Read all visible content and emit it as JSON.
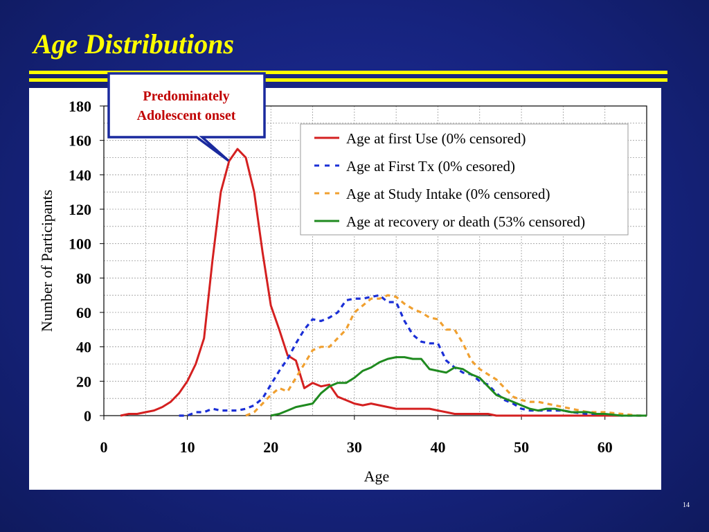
{
  "slide": {
    "title": "Age Distributions",
    "page_number": "14"
  },
  "callout": {
    "line1": "Predominately",
    "line2": "Adolescent onset"
  },
  "colors": {
    "background": "#16237e",
    "title": "#ffff00",
    "rule": "#ffff00",
    "callout_text": "#c00000",
    "callout_border": "#1a2a9e"
  },
  "chart_data": {
    "type": "line",
    "xlabel": "Age",
    "ylabel": "Number of Participants",
    "xlim": [
      0,
      65
    ],
    "ylim": [
      0,
      180
    ],
    "xticks": [
      0,
      10,
      20,
      30,
      40,
      50,
      60
    ],
    "yticks": [
      0,
      20,
      40,
      60,
      80,
      100,
      120,
      140,
      160,
      180
    ],
    "grid": true,
    "legend_position": "top-right",
    "series": [
      {
        "name": "Age at first Use (0% censored)",
        "color": "#d42020",
        "style": "solid",
        "points": [
          [
            2,
            0
          ],
          [
            3,
            1
          ],
          [
            4,
            1
          ],
          [
            5,
            2
          ],
          [
            6,
            3
          ],
          [
            7,
            5
          ],
          [
            8,
            8
          ],
          [
            9,
            13
          ],
          [
            10,
            20
          ],
          [
            11,
            30
          ],
          [
            12,
            45
          ],
          [
            13,
            90
          ],
          [
            14,
            130
          ],
          [
            15,
            148
          ],
          [
            16,
            155
          ],
          [
            17,
            150
          ],
          [
            18,
            130
          ],
          [
            19,
            95
          ],
          [
            20,
            64
          ],
          [
            21,
            50
          ],
          [
            22,
            35
          ],
          [
            23,
            32
          ],
          [
            24,
            16
          ],
          [
            25,
            19
          ],
          [
            26,
            17
          ],
          [
            27,
            18
          ],
          [
            28,
            11
          ],
          [
            29,
            9
          ],
          [
            30,
            7
          ],
          [
            31,
            6
          ],
          [
            32,
            7
          ],
          [
            33,
            6
          ],
          [
            34,
            5
          ],
          [
            35,
            4
          ],
          [
            36,
            4
          ],
          [
            37,
            4
          ],
          [
            38,
            4
          ],
          [
            39,
            4
          ],
          [
            40,
            3
          ],
          [
            41,
            2
          ],
          [
            42,
            1
          ],
          [
            43,
            1
          ],
          [
            44,
            1
          ],
          [
            45,
            1
          ],
          [
            46,
            1
          ],
          [
            47,
            0
          ],
          [
            48,
            0
          ],
          [
            50,
            0
          ],
          [
            55,
            0
          ],
          [
            60,
            0
          ],
          [
            65,
            0
          ]
        ]
      },
      {
        "name": "Age at First Tx (0% cesored)",
        "color": "#1b2fd6",
        "style": "dashed",
        "points": [
          [
            9,
            0
          ],
          [
            10,
            0
          ],
          [
            11,
            2
          ],
          [
            12,
            2
          ],
          [
            13,
            4
          ],
          [
            14,
            3
          ],
          [
            15,
            3
          ],
          [
            16,
            3
          ],
          [
            17,
            4
          ],
          [
            18,
            6
          ],
          [
            19,
            10
          ],
          [
            20,
            18
          ],
          [
            21,
            26
          ],
          [
            22,
            33
          ],
          [
            23,
            42
          ],
          [
            24,
            50
          ],
          [
            25,
            56
          ],
          [
            26,
            55
          ],
          [
            27,
            57
          ],
          [
            28,
            60
          ],
          [
            29,
            67
          ],
          [
            30,
            68
          ],
          [
            31,
            68
          ],
          [
            32,
            69
          ],
          [
            33,
            70
          ],
          [
            34,
            66
          ],
          [
            35,
            66
          ],
          [
            36,
            55
          ],
          [
            37,
            47
          ],
          [
            38,
            43
          ],
          [
            39,
            42
          ],
          [
            40,
            42
          ],
          [
            41,
            32
          ],
          [
            42,
            28
          ],
          [
            43,
            25
          ],
          [
            44,
            24
          ],
          [
            45,
            20
          ],
          [
            46,
            18
          ],
          [
            47,
            13
          ],
          [
            48,
            9
          ],
          [
            49,
            7
          ],
          [
            50,
            4
          ],
          [
            51,
            3
          ],
          [
            52,
            3
          ],
          [
            53,
            3
          ],
          [
            54,
            3
          ],
          [
            55,
            3
          ],
          [
            56,
            2
          ],
          [
            58,
            1
          ],
          [
            60,
            1
          ],
          [
            62,
            0
          ],
          [
            65,
            0
          ]
        ]
      },
      {
        "name": "Age at Study Intake (0% censored)",
        "color": "#f0a030",
        "style": "dashed",
        "points": [
          [
            17,
            0
          ],
          [
            18,
            2
          ],
          [
            19,
            7
          ],
          [
            20,
            12
          ],
          [
            21,
            16
          ],
          [
            22,
            14
          ],
          [
            23,
            22
          ],
          [
            24,
            30
          ],
          [
            25,
            38
          ],
          [
            26,
            40
          ],
          [
            27,
            40
          ],
          [
            28,
            45
          ],
          [
            29,
            50
          ],
          [
            30,
            60
          ],
          [
            31,
            64
          ],
          [
            32,
            68
          ],
          [
            33,
            68
          ],
          [
            34,
            70
          ],
          [
            35,
            69
          ],
          [
            36,
            65
          ],
          [
            37,
            62
          ],
          [
            38,
            60
          ],
          [
            39,
            57
          ],
          [
            40,
            56
          ],
          [
            41,
            50
          ],
          [
            42,
            50
          ],
          [
            43,
            42
          ],
          [
            44,
            32
          ],
          [
            45,
            27
          ],
          [
            46,
            24
          ],
          [
            47,
            21
          ],
          [
            48,
            16
          ],
          [
            49,
            11
          ],
          [
            50,
            9
          ],
          [
            51,
            8
          ],
          [
            52,
            8
          ],
          [
            53,
            7
          ],
          [
            54,
            6
          ],
          [
            55,
            5
          ],
          [
            56,
            4
          ],
          [
            57,
            3
          ],
          [
            58,
            2
          ],
          [
            60,
            2
          ],
          [
            62,
            1
          ],
          [
            64,
            0
          ],
          [
            65,
            0
          ]
        ]
      },
      {
        "name": "Age at recovery or death (53% censored)",
        "color": "#1f8a1f",
        "style": "solid",
        "points": [
          [
            20,
            0
          ],
          [
            21,
            1
          ],
          [
            22,
            3
          ],
          [
            23,
            5
          ],
          [
            24,
            6
          ],
          [
            25,
            7
          ],
          [
            26,
            13
          ],
          [
            27,
            17
          ],
          [
            28,
            19
          ],
          [
            29,
            19
          ],
          [
            30,
            22
          ],
          [
            31,
            26
          ],
          [
            32,
            28
          ],
          [
            33,
            31
          ],
          [
            34,
            33
          ],
          [
            35,
            34
          ],
          [
            36,
            34
          ],
          [
            37,
            33
          ],
          [
            38,
            33
          ],
          [
            39,
            27
          ],
          [
            40,
            26
          ],
          [
            41,
            25
          ],
          [
            42,
            28
          ],
          [
            43,
            27
          ],
          [
            44,
            24
          ],
          [
            45,
            22
          ],
          [
            46,
            17
          ],
          [
            47,
            12
          ],
          [
            48,
            10
          ],
          [
            49,
            8
          ],
          [
            50,
            6
          ],
          [
            51,
            4
          ],
          [
            52,
            3
          ],
          [
            53,
            4
          ],
          [
            54,
            4
          ],
          [
            55,
            3
          ],
          [
            56,
            2
          ],
          [
            57,
            2
          ],
          [
            58,
            2
          ],
          [
            59,
            1
          ],
          [
            60,
            1
          ],
          [
            62,
            0
          ],
          [
            65,
            0
          ]
        ]
      }
    ]
  }
}
